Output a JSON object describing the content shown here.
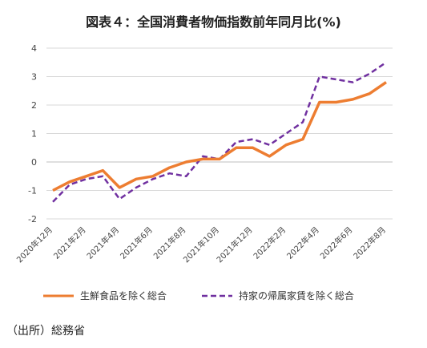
{
  "title": "図表４：全国消費者物価指数前年同月比(%)",
  "source": "（出所）総務省",
  "chart_data": {
    "type": "line",
    "x": [
      "2020年12月",
      "2021年1月",
      "2021年2月",
      "2021年3月",
      "2021年4月",
      "2021年5月",
      "2021年6月",
      "2021年7月",
      "2021年8月",
      "2021年9月",
      "2021年10月",
      "2021年11月",
      "2021年12月",
      "2022年1月",
      "2022年2月",
      "2022年3月",
      "2022年4月",
      "2022年5月",
      "2022年6月",
      "2022年7月",
      "2022年8月"
    ],
    "xtick_labels": [
      "2020年12月",
      "2021年2月",
      "2021年4月",
      "2021年6月",
      "2021年8月",
      "2021年10月",
      "2021年12月",
      "2022年2月",
      "2022年4月",
      "2022年6月",
      "2022年8月"
    ],
    "ylim": [
      -2,
      4
    ],
    "yticks": [
      -2,
      -1,
      0,
      1,
      2,
      3,
      4
    ],
    "grid": true,
    "legend_position": "bottom",
    "series": [
      {
        "name": "生鮮食品を除く総合",
        "color": "#ED7D31",
        "style": "solid",
        "values": [
          -1.0,
          -0.7,
          -0.5,
          -0.3,
          -0.9,
          -0.6,
          -0.5,
          -0.2,
          0.0,
          0.1,
          0.1,
          0.5,
          0.5,
          0.2,
          0.6,
          0.8,
          2.1,
          2.1,
          2.2,
          2.4,
          2.8
        ]
      },
      {
        "name": "持家の帰属家賃を除く総合",
        "color": "#7030A0",
        "style": "dashed",
        "values": [
          -1.4,
          -0.8,
          -0.6,
          -0.5,
          -1.3,
          -0.9,
          -0.6,
          -0.4,
          -0.5,
          0.2,
          0.1,
          0.7,
          0.8,
          0.6,
          1.0,
          1.4,
          3.0,
          2.9,
          2.8,
          3.1,
          3.5
        ]
      }
    ]
  }
}
